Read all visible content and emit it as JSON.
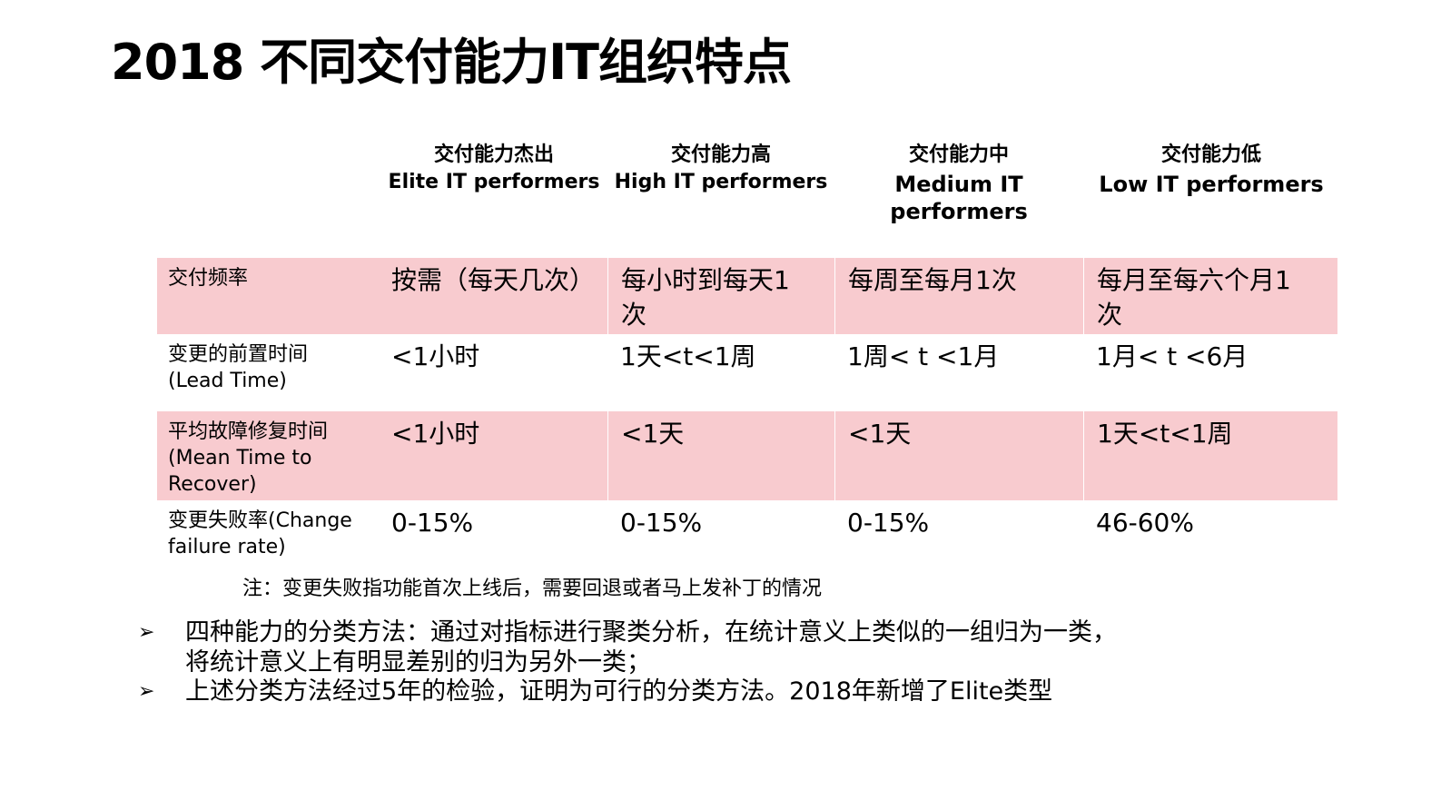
{
  "title": "2018 不同交付能力IT组织特点",
  "columns": [
    {
      "zh": "交付能力杰出",
      "en": "Elite IT performers"
    },
    {
      "zh": "交付能力高",
      "en": "High IT performers"
    },
    {
      "zh": "交付能力中",
      "en1": "Medium IT",
      "en2": "performers"
    },
    {
      "zh": "交付能力低",
      "en": "Low IT performers"
    }
  ],
  "rows": [
    {
      "label_lines": [
        "交付频率"
      ],
      "values": [
        [
          "按需（每天几次）"
        ],
        [
          "每小时到每天1",
          "次"
        ],
        [
          "每周至每月1次"
        ],
        [
          "每月至每六个月1",
          "次"
        ]
      ]
    },
    {
      "label_lines": [
        "变更的前置时间",
        "(Lead Time)"
      ],
      "values": [
        [
          "<1小时"
        ],
        [
          "1天<t<1周"
        ],
        [
          "1周< t <1月"
        ],
        [
          "1月< t <6月"
        ]
      ]
    },
    {
      "label_lines": [
        "平均故障修复时间",
        "(Mean Time to",
        "Recover)"
      ],
      "values": [
        [
          "<1小时"
        ],
        [
          "<1天"
        ],
        [
          "<1天"
        ],
        [
          "1天<t<1周"
        ]
      ]
    },
    {
      "label_lines": [
        "变更失败率(Change",
        "failure rate)"
      ],
      "values": [
        [
          "0-15%"
        ],
        [
          "0-15%"
        ],
        [
          "0-15%"
        ],
        [
          "46-60%"
        ]
      ]
    }
  ],
  "note": "注：变更失败指功能首次上线后，需要回退或者马上发补丁的情况",
  "bullets": [
    {
      "mark": "➢",
      "lines": [
        "四种能力的分类方法：通过对指标进行聚类分析，在统计意义上类似的一组归为一类，",
        "将统计意义上有明显差别的归为另外一类；"
      ]
    },
    {
      "mark": "➢",
      "lines": [
        "上述分类方法经过5年的检验，证明为可行的分类方法。2018年新增了Elite类型"
      ]
    }
  ],
  "colors": {
    "row_highlight": "#f8cbcf",
    "background": "#ffffff",
    "text": "#000000"
  }
}
